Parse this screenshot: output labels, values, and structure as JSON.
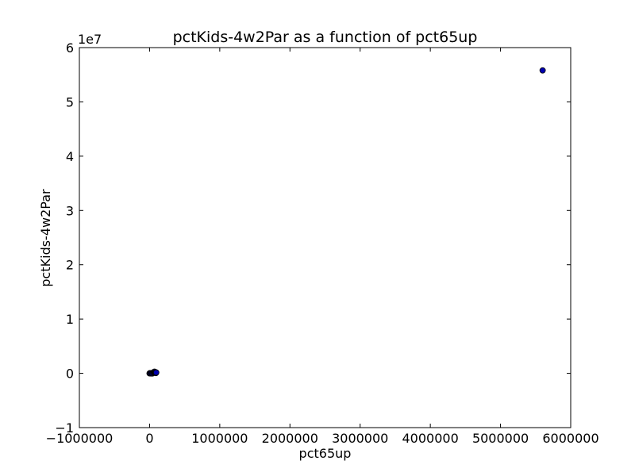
{
  "chart_data": {
    "type": "scatter",
    "title": "pctKids-4w2Par as a function of pct65up",
    "xlabel": "pct65up",
    "ylabel": "pctKids-4w2Par",
    "xlim": [
      -1000000,
      6000000
    ],
    "ylim": [
      -10000000,
      60000000
    ],
    "x_ticks": [
      -1000000,
      0,
      1000000,
      2000000,
      3000000,
      4000000,
      5000000,
      6000000
    ],
    "x_tick_labels": [
      "−1000000",
      "0",
      "1000000",
      "2000000",
      "3000000",
      "4000000",
      "5000000",
      "6000000"
    ],
    "y_ticks": [
      -10000000,
      0,
      10000000,
      20000000,
      30000000,
      40000000,
      50000000,
      60000000
    ],
    "y_tick_labels": [
      "−1",
      "0",
      "1",
      "2",
      "3",
      "4",
      "5",
      "6"
    ],
    "y_offset_label": "1e7",
    "grid": false,
    "marker_color": "#0000b0",
    "marker_edge_color": "#000000",
    "points": [
      {
        "x": 5600000,
        "y": 55800000
      },
      {
        "x": 0,
        "y": 0
      },
      {
        "x": 10000,
        "y": 20000
      },
      {
        "x": 20000,
        "y": -30000
      },
      {
        "x": 30000,
        "y": 50000
      },
      {
        "x": 40000,
        "y": -20000
      },
      {
        "x": 50000,
        "y": 100000
      },
      {
        "x": 60000,
        "y": 200000
      },
      {
        "x": 65000,
        "y": 250000
      },
      {
        "x": 70000,
        "y": 300000
      },
      {
        "x": 75000,
        "y": 150000
      },
      {
        "x": 80000,
        "y": 100000
      },
      {
        "x": 85000,
        "y": 200000
      },
      {
        "x": 90000,
        "y": 50000
      },
      {
        "x": 95000,
        "y": 150000
      }
    ]
  }
}
